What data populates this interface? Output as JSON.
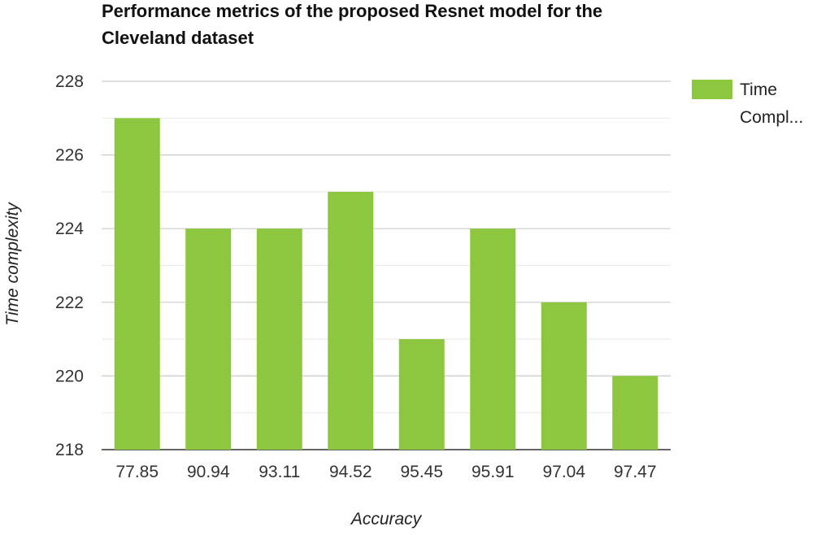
{
  "chart_data": {
    "type": "bar",
    "title_lines": [
      "Performance metrics of the proposed Resnet model for the",
      "Cleveland dataset"
    ],
    "xlabel": "Accuracy",
    "ylabel": "Time complexity",
    "categories": [
      "77.85",
      "90.94",
      "93.11",
      "94.52",
      "95.45",
      "95.91",
      "97.04",
      "97.47"
    ],
    "series": [
      {
        "name": "Time Compl...",
        "legend_lines": [
          "Time",
          "Compl..."
        ],
        "color": "#8dc63f",
        "values": [
          227,
          224,
          224,
          225,
          221,
          224,
          222,
          220
        ]
      }
    ],
    "ylim": [
      218,
      228
    ],
    "yticks": [
      218,
      220,
      222,
      224,
      226,
      228
    ],
    "grid": true,
    "legend_position": "top-right"
  }
}
